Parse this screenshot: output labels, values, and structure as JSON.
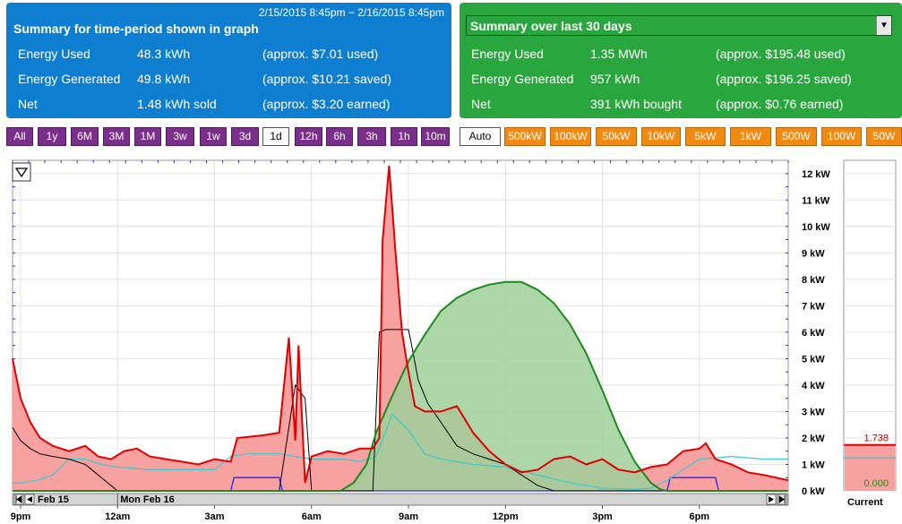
{
  "summary_graph": {
    "date_range": "2/15/2015 8:45pm − 2/16/2015 8:45pm",
    "title": "Summary for time-period shown in graph",
    "rows": [
      {
        "label": "Energy Used",
        "value": "48.3 kWh",
        "note": "(approx. $7.01 used)"
      },
      {
        "label": "Energy Generated",
        "value": "49.8 kWh",
        "note": "(approx. $10.21 saved)"
      },
      {
        "label": "Net",
        "value": "1.48 kWh sold",
        "note": "(approx. $3.20 earned)"
      }
    ]
  },
  "summary_30": {
    "title": "Summary over last 30 days",
    "rows": [
      {
        "label": "Energy Used",
        "value": "1.35 MWh",
        "note": "(approx. $195.48 used)"
      },
      {
        "label": "Energy Generated",
        "value": "957 kWh",
        "note": "(approx. $196.25 saved)"
      },
      {
        "label": "Net",
        "value": "391 kWh bought",
        "note": "(approx. $0.76 earned)"
      }
    ]
  },
  "time_buttons": [
    "All",
    "1y",
    "6M",
    "3M",
    "1M",
    "3w",
    "1w",
    "3d",
    "1d",
    "12h",
    "6h",
    "3h",
    "1h",
    "10m"
  ],
  "time_selected": "1d",
  "scale_buttons": [
    "Auto",
    "500kW",
    "100kW",
    "50kW",
    "10kW",
    "5kW",
    "1kW",
    "500W",
    "100W",
    "50W"
  ],
  "scale_selected": "Auto",
  "colors": {
    "used": "#e00000",
    "used_fill": "#f7a1a1",
    "generated": "#1e8a1e",
    "generated_fill": "#9fd09a",
    "cyan": "#3cc8cc",
    "black": "#000000",
    "blue": "#2424ff"
  },
  "chart_data": {
    "type": "area",
    "x_tick_labels": [
      "9pm",
      "12am",
      "3am",
      "6am",
      "9am",
      "12pm",
      "3pm",
      "6pm"
    ],
    "x_tick_hours": [
      21,
      24,
      27,
      30,
      33,
      36,
      39,
      42
    ],
    "x_range_hours": [
      20.75,
      44.75
    ],
    "y_unit": "kW",
    "ylim": [
      0,
      12.5
    ],
    "y_tick_labels": [
      "0 kW",
      "1 kW",
      "2 kW",
      "3 kW",
      "4 kW",
      "5 kW",
      "6 kW",
      "7 kW",
      "8 kW",
      "9 kW",
      "10 kW",
      "11 kW",
      "12 kW"
    ],
    "y_ticks": [
      0,
      1,
      2,
      3,
      4,
      5,
      6,
      7,
      8,
      9,
      10,
      11,
      12
    ],
    "date_labels": [
      "Feb 15",
      "Mon Feb 16"
    ],
    "current_label": "Current",
    "current_used": "1.738",
    "current_generated": "0.000",
    "series": [
      {
        "key": "used",
        "x": [
          20.75,
          21.0,
          21.3,
          21.6,
          22.0,
          22.5,
          23.0,
          23.4,
          23.8,
          24.2,
          24.6,
          25.0,
          25.5,
          26.0,
          26.5,
          27.0,
          27.5,
          27.7,
          28.5,
          29.0,
          29.3,
          29.5,
          29.6,
          29.8,
          30.0,
          30.5,
          31.0,
          31.5,
          31.9,
          32.1,
          32.2,
          32.4,
          32.6,
          32.8,
          33.0,
          33.2,
          33.5,
          34.0,
          34.5,
          35.0,
          35.5,
          36.0,
          36.5,
          37.0,
          37.5,
          38.0,
          38.5,
          39.0,
          39.5,
          40.0,
          40.5,
          41.0,
          41.5,
          42.0,
          42.2,
          42.5,
          43.0,
          43.5,
          44.0,
          44.75
        ],
        "y": [
          5.0,
          3.5,
          2.6,
          2.0,
          1.7,
          1.5,
          1.7,
          1.3,
          1.2,
          1.5,
          1.6,
          1.3,
          1.2,
          1.1,
          1.0,
          1.2,
          1.1,
          2.0,
          2.1,
          2.2,
          5.8,
          1.9,
          5.5,
          0.3,
          1.3,
          1.5,
          1.4,
          1.6,
          1.6,
          2.0,
          9.5,
          12.3,
          9.0,
          6.0,
          4.5,
          3.2,
          3.0,
          3.0,
          3.2,
          2.2,
          1.5,
          1.0,
          0.7,
          0.8,
          1.2,
          1.3,
          1.0,
          1.2,
          0.8,
          0.7,
          0.9,
          1.0,
          1.5,
          1.6,
          1.8,
          1.2,
          1.0,
          0.7,
          0.6,
          0.4
        ]
      },
      {
        "key": "generated",
        "x": [
          20.75,
          30.9,
          31.3,
          31.7,
          32.0,
          32.5,
          33.0,
          33.5,
          34.0,
          34.5,
          35.0,
          35.5,
          36.0,
          36.5,
          37.0,
          37.5,
          38.0,
          38.5,
          39.0,
          39.5,
          40.0,
          40.5,
          40.8,
          41.0,
          44.75
        ],
        "y": [
          0,
          0,
          0.3,
          1.0,
          2.2,
          3.6,
          4.9,
          5.9,
          6.8,
          7.3,
          7.6,
          7.8,
          7.9,
          7.9,
          7.6,
          7.1,
          6.3,
          5.2,
          3.8,
          2.3,
          1.1,
          0.3,
          0.05,
          0,
          0
        ]
      },
      {
        "key": "cyan",
        "x": [
          20.75,
          21.0,
          21.5,
          22.0,
          22.5,
          23.0,
          23.5,
          24.0,
          25.0,
          26.0,
          27.0,
          27.5,
          28.0,
          29.0,
          30.0,
          31.0,
          31.5,
          32.0,
          32.5,
          33.0,
          33.5,
          34.0,
          34.5,
          35.0,
          36.0,
          37.0,
          38.0,
          39.0,
          40.0,
          40.5,
          41.0,
          42.0,
          43.0,
          44.0,
          44.75
        ],
        "y": [
          0.3,
          0.3,
          0.4,
          0.6,
          1.2,
          1.2,
          1.0,
          0.9,
          0.8,
          0.8,
          0.8,
          1.3,
          1.4,
          1.4,
          1.2,
          1.2,
          1.1,
          1.3,
          2.9,
          2.3,
          1.4,
          1.2,
          1.1,
          1.0,
          0.9,
          0.6,
          0.3,
          0.1,
          0.05,
          0.1,
          0.4,
          1.2,
          1.3,
          1.2,
          1.2
        ]
      },
      {
        "key": "black",
        "x": [
          20.75,
          21.0,
          21.3,
          21.6,
          22.0,
          22.5,
          23.0,
          23.3,
          23.6,
          24.0,
          24.5,
          25.0,
          26.0,
          27.0,
          27.5,
          28.0,
          29.0,
          29.5,
          29.8,
          30.0,
          31.0,
          31.9,
          32.1,
          32.3,
          33.0,
          33.1,
          33.3,
          33.6,
          34.0,
          34.5,
          35.0,
          35.5,
          36.0,
          36.5,
          37.0,
          37.5,
          44.75
        ],
        "y": [
          2.4,
          1.9,
          1.6,
          1.4,
          1.3,
          1.2,
          1.0,
          0.7,
          0.4,
          0,
          0,
          0,
          0,
          0,
          0,
          0,
          0,
          4.0,
          3.5,
          0,
          0,
          0,
          6.0,
          6.1,
          6.1,
          5.5,
          4.2,
          3.3,
          2.6,
          1.7,
          1.4,
          1.2,
          1.0,
          0.6,
          0.2,
          0,
          0
        ]
      },
      {
        "key": "blue",
        "x": [
          20.75,
          27.5,
          27.6,
          29.0,
          29.1,
          40.5,
          41.0,
          41.1,
          42.5,
          42.6,
          44.75
        ],
        "y": [
          0,
          0,
          0.5,
          0.5,
          0,
          0,
          0,
          0.5,
          0.5,
          0,
          0
        ]
      }
    ]
  }
}
